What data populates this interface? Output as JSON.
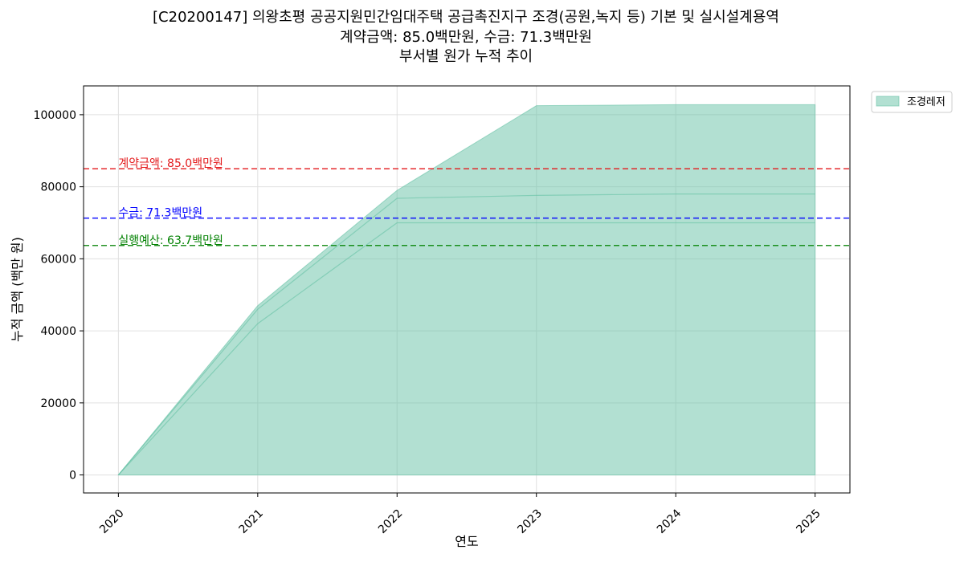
{
  "chart_data": {
    "type": "area",
    "title_lines": [
      "[C20200147] 의왕초평 공공지원민간임대주택 공급촉진지구 조경(공원,녹지 등) 기본 및 실시설계용역",
      "계약금액: 85.0백만원, 수금: 71.3백만원",
      "부서별 원가 누적 추이"
    ],
    "xlabel": "연도",
    "ylabel": "누적 금액 (백만 원)",
    "x": [
      2020,
      2021,
      2022,
      2023,
      2024,
      2025
    ],
    "xlim": [
      2019.75,
      2025.25
    ],
    "ylim": [
      -5000,
      108000
    ],
    "yticks": [
      0,
      20000,
      40000,
      60000,
      80000,
      100000
    ],
    "grid": true,
    "legend_position": "outside-top-right",
    "series": [
      {
        "name": "조경레저",
        "color": "#66c2a5",
        "alpha": 0.5,
        "values": [
          0,
          47000,
          79000,
          102500,
          102800,
          102800
        ]
      }
    ],
    "inner_lines": [
      {
        "values": [
          0,
          46000,
          76800,
          77600,
          78000,
          78000
        ]
      },
      {
        "values": [
          0,
          42000,
          70000,
          70000,
          70000,
          70000
        ]
      }
    ],
    "reference_lines": [
      {
        "label": "계약금액: 85.0백만원",
        "value": 85000,
        "color": "#e31a1c"
      },
      {
        "label": "수금: 71.3백만원",
        "value": 71300,
        "color": "#0000ff"
      },
      {
        "label": "실행예산: 63.7백만원",
        "value": 63700,
        "color": "#008000"
      }
    ]
  }
}
